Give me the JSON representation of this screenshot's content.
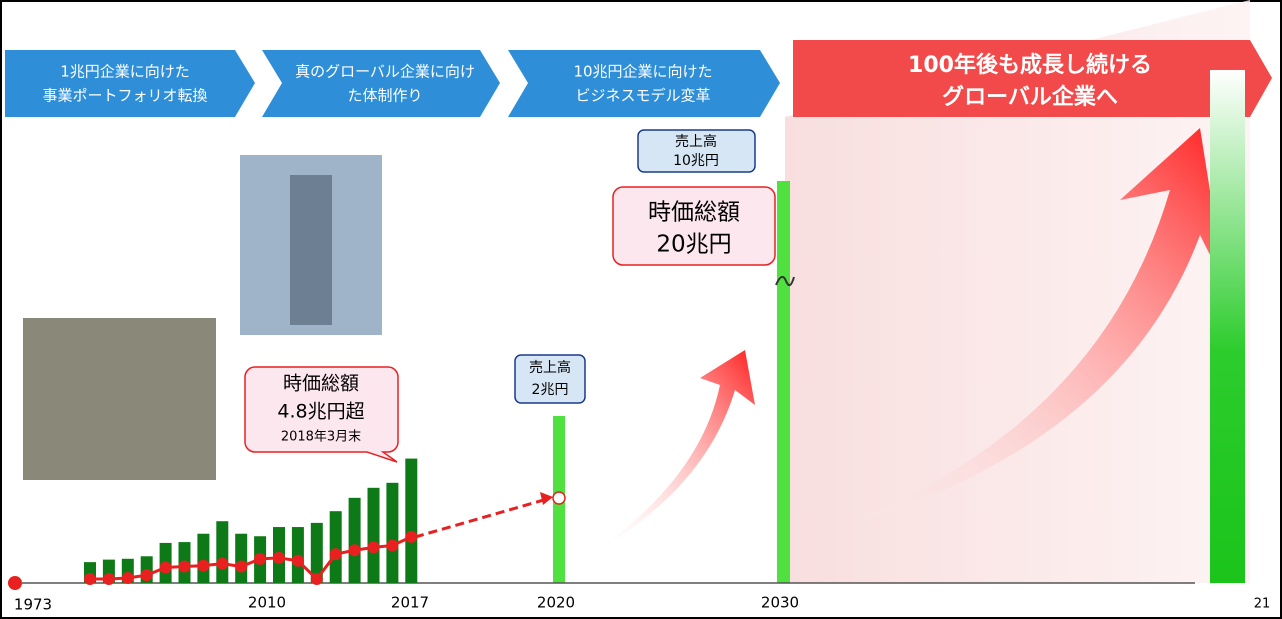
{
  "phases": [
    [
      "1兆円企業に向けた",
      "事業ポートフォリオ転換"
    ],
    [
      "真のグローバル企業に向け",
      "た体制作り"
    ],
    [
      "10兆円企業に向けた",
      "ビジネスモデル変革"
    ]
  ],
  "goal": [
    "100年後も成長し続ける",
    "グローバル企業へ"
  ],
  "callouts": {
    "sales_2030": [
      "売上高",
      "10兆円"
    ],
    "market_cap_2030": [
      "時価総額",
      "20兆円"
    ],
    "sales_2020": [
      "売上高",
      "2兆円"
    ],
    "market_cap_2018": [
      "時価総額",
      "4.8兆円超",
      "2018年3月末"
    ]
  },
  "years": [
    "1973",
    "2010",
    "2017",
    "2020",
    "2030"
  ],
  "revenue": [
    0.25,
    0.28,
    0.29,
    0.32,
    0.48,
    0.49,
    0.59,
    0.74,
    0.59,
    0.56,
    0.67,
    0.67,
    0.72,
    0.86,
    1.02,
    1.14,
    1.2,
    1.49
  ],
  "market_cap": [
    0.4,
    0.4,
    0.5,
    0.8,
    1.6,
    1.7,
    1.8,
    2.0,
    1.7,
    2.5,
    2.6,
    2.3,
    0.4,
    3.0,
    3.4,
    3.7,
    3.9,
    4.8
  ],
  "page_number": "21"
}
